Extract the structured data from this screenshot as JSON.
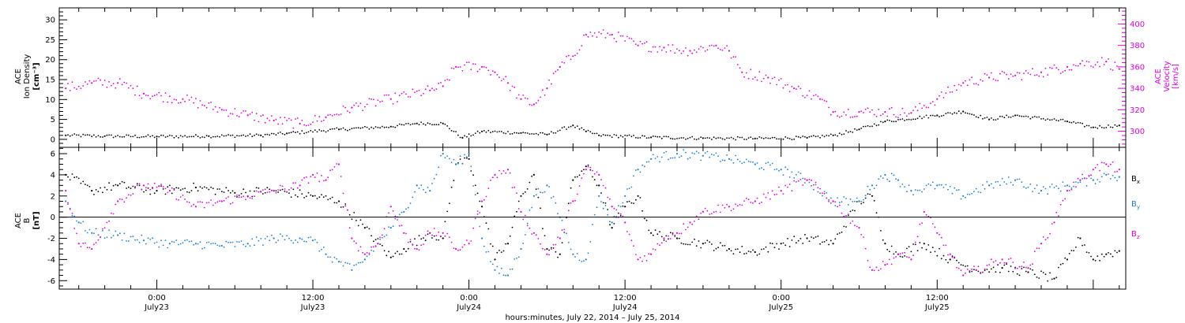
{
  "chart_data": [
    {
      "type": "scatter",
      "panel": "top",
      "ylabel_lines": [
        "ACE",
        "Ion Density",
        "[cm⁻³]"
      ],
      "y2label_lines": [
        "ACE",
        "Velocity",
        "[km/s]"
      ],
      "ylim": [
        -2,
        33
      ],
      "yticks": [
        0,
        5,
        10,
        15,
        20,
        25,
        30
      ],
      "y2lim": [
        285,
        415
      ],
      "y2ticks": [
        300,
        320,
        340,
        360,
        380,
        400
      ],
      "x_range_hours": [
        -7.5,
        74.5
      ],
      "series": [
        {
          "axis": "left",
          "color": "#000000",
          "points": [
            [
              -7,
              1.0
            ],
            [
              -4,
              0.8
            ],
            [
              0,
              0.7
            ],
            [
              4,
              0.8
            ],
            [
              8,
              1.0
            ],
            [
              10,
              1.5
            ],
            [
              14,
              2.5
            ],
            [
              18,
              3.2
            ],
            [
              20,
              4.0
            ],
            [
              22,
              4.0
            ],
            [
              23.5,
              0.4
            ],
            [
              25,
              2.0
            ],
            [
              28,
              1.6
            ],
            [
              30,
              1.2
            ],
            [
              32,
              3.5
            ],
            [
              33,
              2.0
            ],
            [
              34,
              1.0
            ],
            [
              38,
              0.5
            ],
            [
              42,
              0.3
            ],
            [
              46,
              0.2
            ],
            [
              50,
              0.4
            ],
            [
              52,
              1.0
            ],
            [
              54,
              2.5
            ],
            [
              56,
              4.5
            ],
            [
              60,
              6.0
            ],
            [
              62,
              7.0
            ],
            [
              64,
              5.0
            ],
            [
              66,
              6.0
            ],
            [
              70,
              4.5
            ],
            [
              72,
              3.0
            ],
            [
              74,
              3.5
            ]
          ]
        },
        {
          "axis": "right",
          "color": "#e000e0",
          "points": [
            [
              -7,
              340
            ],
            [
              -5,
              345
            ],
            [
              -3,
              345
            ],
            [
              -1,
              335
            ],
            [
              2,
              330
            ],
            [
              5,
              320
            ],
            [
              7,
              315
            ],
            [
              9,
              310
            ],
            [
              11,
              307
            ],
            [
              13,
              313
            ],
            [
              15,
              322
            ],
            [
              18,
              330
            ],
            [
              21,
              338
            ],
            [
              22,
              342
            ],
            [
              23,
              360
            ],
            [
              25,
              360
            ],
            [
              26,
              355
            ],
            [
              27,
              345
            ],
            [
              28,
              330
            ],
            [
              29,
              325
            ],
            [
              30,
              340
            ],
            [
              31,
              360
            ],
            [
              32,
              370
            ],
            [
              33,
              390
            ],
            [
              35,
              390
            ],
            [
              37,
              380
            ],
            [
              39,
              378
            ],
            [
              41,
              375
            ],
            [
              43,
              380
            ],
            [
              44,
              375
            ],
            [
              45,
              355
            ],
            [
              47,
              350
            ],
            [
              49,
              340
            ],
            [
              51,
              330
            ],
            [
              52,
              318
            ],
            [
              54,
              318
            ],
            [
              56,
              318
            ],
            [
              58,
              317
            ],
            [
              60,
              330
            ],
            [
              62,
              345
            ],
            [
              64,
              350
            ],
            [
              66,
              352
            ],
            [
              68,
              355
            ],
            [
              70,
              360
            ],
            [
              71,
              363
            ],
            [
              73,
              365
            ],
            [
              74,
              358
            ]
          ]
        }
      ]
    },
    {
      "type": "scatter",
      "panel": "bottom",
      "ylabel_lines": [
        "ACE",
        "B",
        "[nT]"
      ],
      "ylim": [
        -6.8,
        6.6
      ],
      "yticks": [
        -6,
        -4,
        -2,
        0,
        2,
        4,
        6
      ],
      "zero_line": true,
      "x_range_hours": [
        -7.5,
        74.5
      ],
      "series": [
        {
          "name": "B",
          "sub": "x",
          "color": "#000000",
          "points": [
            [
              -7,
              4.0
            ],
            [
              -5,
              2.5
            ],
            [
              -3,
              3.0
            ],
            [
              0,
              2.5
            ],
            [
              3,
              2.8
            ],
            [
              6,
              2.3
            ],
            [
              9,
              2.5
            ],
            [
              12,
              2.0
            ],
            [
              14,
              1.5
            ],
            [
              16,
              -1.0
            ],
            [
              18,
              -3.8
            ],
            [
              19,
              -3.0
            ],
            [
              21,
              -1.5
            ],
            [
              22,
              -2.0
            ],
            [
              23,
              5.0
            ],
            [
              24,
              5.5
            ],
            [
              25,
              1.0
            ],
            [
              26,
              -4.0
            ],
            [
              27,
              -2.5
            ],
            [
              28,
              2.0
            ],
            [
              29,
              4.0
            ],
            [
              30,
              -3.0
            ],
            [
              31,
              -3.5
            ],
            [
              32,
              3.5
            ],
            [
              33,
              4.8
            ],
            [
              34,
              3.0
            ],
            [
              35,
              -1.0
            ],
            [
              36,
              1.0
            ],
            [
              37,
              2.0
            ],
            [
              38,
              -1.5
            ],
            [
              40,
              -2.0
            ],
            [
              42,
              -2.5
            ],
            [
              44,
              -3.0
            ],
            [
              46,
              -3.3
            ],
            [
              48,
              -2.5
            ],
            [
              50,
              -2.0
            ],
            [
              52,
              -2.5
            ],
            [
              54,
              1.5
            ],
            [
              55,
              2.0
            ],
            [
              56,
              -2.5
            ],
            [
              57,
              -3.5
            ],
            [
              59,
              -2.5
            ],
            [
              61,
              -4.0
            ],
            [
              63,
              -5.0
            ],
            [
              65,
              -4.8
            ],
            [
              67,
              -5.2
            ],
            [
              69,
              -5.8
            ],
            [
              70,
              -4.0
            ],
            [
              71,
              -2.0
            ],
            [
              72,
              -4.0
            ],
            [
              73,
              -3.5
            ],
            [
              74,
              -3.2
            ]
          ]
        },
        {
          "name": "B",
          "sub": "y",
          "color": "#1e7fd6",
          "points": [
            [
              -7,
              1.5
            ],
            [
              -6,
              -0.5
            ],
            [
              -5,
              -1.5
            ],
            [
              -3,
              -1.7
            ],
            [
              -1,
              -2.2
            ],
            [
              1,
              -2.5
            ],
            [
              3,
              -2.5
            ],
            [
              5,
              -2.7
            ],
            [
              7,
              -2.5
            ],
            [
              9,
              -2.0
            ],
            [
              11,
              -2.0
            ],
            [
              12,
              -2.2
            ],
            [
              13,
              -3.5
            ],
            [
              14,
              -4.2
            ],
            [
              15,
              -5.0
            ],
            [
              16,
              -4.0
            ],
            [
              17,
              -2.5
            ],
            [
              18,
              -1.0
            ],
            [
              19,
              0.5
            ],
            [
              20,
              3.0
            ],
            [
              21,
              2.5
            ],
            [
              22,
              6.0
            ],
            [
              23,
              5.0
            ],
            [
              24,
              6.0
            ],
            [
              25,
              -2.0
            ],
            [
              26,
              -5.0
            ],
            [
              27,
              -5.5
            ],
            [
              28,
              -3.0
            ],
            [
              29,
              2.0
            ],
            [
              30,
              3.0
            ],
            [
              31,
              0.0
            ],
            [
              32,
              -3.5
            ],
            [
              33,
              -4.0
            ],
            [
              34,
              2.0
            ],
            [
              35,
              -0.5
            ],
            [
              36,
              2.0
            ],
            [
              37,
              4.5
            ],
            [
              38,
              5.5
            ],
            [
              40,
              6.0
            ],
            [
              42,
              5.8
            ],
            [
              44,
              5.5
            ],
            [
              46,
              5.0
            ],
            [
              48,
              4.5
            ],
            [
              50,
              3.5
            ],
            [
              52,
              1.5
            ],
            [
              54,
              1.5
            ],
            [
              55,
              3.0
            ],
            [
              56,
              4.0
            ],
            [
              57,
              3.5
            ],
            [
              58,
              2.5
            ],
            [
              60,
              3.0
            ],
            [
              62,
              2.0
            ],
            [
              64,
              3.0
            ],
            [
              66,
              3.5
            ],
            [
              68,
              2.5
            ],
            [
              70,
              3.0
            ],
            [
              72,
              3.5
            ],
            [
              73,
              4.0
            ],
            [
              74,
              3.8
            ]
          ]
        },
        {
          "name": "B",
          "sub": "z",
          "color": "#e000e0",
          "points": [
            [
              -7,
              2.5
            ],
            [
              -6,
              -2.5
            ],
            [
              -5,
              -3.0
            ],
            [
              -3,
              1.5
            ],
            [
              -1,
              3.0
            ],
            [
              1,
              2.5
            ],
            [
              3,
              1.0
            ],
            [
              5,
              1.5
            ],
            [
              7,
              2.0
            ],
            [
              9,
              2.5
            ],
            [
              11,
              3.0
            ],
            [
              12,
              4.0
            ],
            [
              13,
              3.5
            ],
            [
              14,
              5.0
            ],
            [
              15,
              -2.0
            ],
            [
              16,
              -3.5
            ],
            [
              17,
              -2.5
            ],
            [
              18,
              1.0
            ],
            [
              19,
              -1.5
            ],
            [
              20,
              -3.0
            ],
            [
              21,
              -1.5
            ],
            [
              22,
              -1.5
            ],
            [
              23,
              -3.0
            ],
            [
              24,
              -2.5
            ],
            [
              25,
              1.5
            ],
            [
              26,
              4.0
            ],
            [
              27,
              4.5
            ],
            [
              28,
              0.5
            ],
            [
              29,
              -1.5
            ],
            [
              30,
              -3.5
            ],
            [
              31,
              -2.0
            ],
            [
              32,
              1.5
            ],
            [
              33,
              4.5
            ],
            [
              34,
              4.0
            ],
            [
              35,
              1.0
            ],
            [
              36,
              -0.5
            ],
            [
              37,
              -4.0
            ],
            [
              38,
              -3.5
            ],
            [
              39,
              -2.0
            ],
            [
              40,
              -1.5
            ],
            [
              41,
              -0.5
            ],
            [
              42,
              0.5
            ],
            [
              44,
              1.0
            ],
            [
              46,
              1.5
            ],
            [
              48,
              2.5
            ],
            [
              50,
              3.5
            ],
            [
              52,
              1.5
            ],
            [
              54,
              -1.0
            ],
            [
              55,
              -5.0
            ],
            [
              56,
              -4.5
            ],
            [
              57,
              -3.5
            ],
            [
              58,
              -4.0
            ],
            [
              59,
              0.5
            ],
            [
              60,
              -1.5
            ],
            [
              61,
              -3.5
            ],
            [
              62,
              -5.5
            ],
            [
              63,
              -5.0
            ],
            [
              65,
              -4.0
            ],
            [
              67,
              -4.8
            ],
            [
              68,
              -2.5
            ],
            [
              69,
              -0.5
            ],
            [
              70,
              2.5
            ],
            [
              71,
              3.5
            ],
            [
              72,
              4.5
            ],
            [
              73,
              5.0
            ],
            [
              74,
              4.5
            ]
          ]
        }
      ]
    }
  ],
  "x_axis": {
    "title": "hours:minutes, July 22, 2014 – July 25, 2014",
    "range_hours": [
      -7.5,
      74.5
    ],
    "major_ticks": [
      {
        "hour": 0,
        "time": "0:00",
        "date": "July23"
      },
      {
        "hour": 12,
        "time": "12:00",
        "date": "July23"
      },
      {
        "hour": 24,
        "time": "0:00",
        "date": "July24"
      },
      {
        "hour": 36,
        "time": "12:00",
        "date": "July24"
      },
      {
        "hour": 48,
        "time": "0:00",
        "date": "July25"
      },
      {
        "hour": 60,
        "time": "12:00",
        "date": "July25"
      }
    ]
  }
}
